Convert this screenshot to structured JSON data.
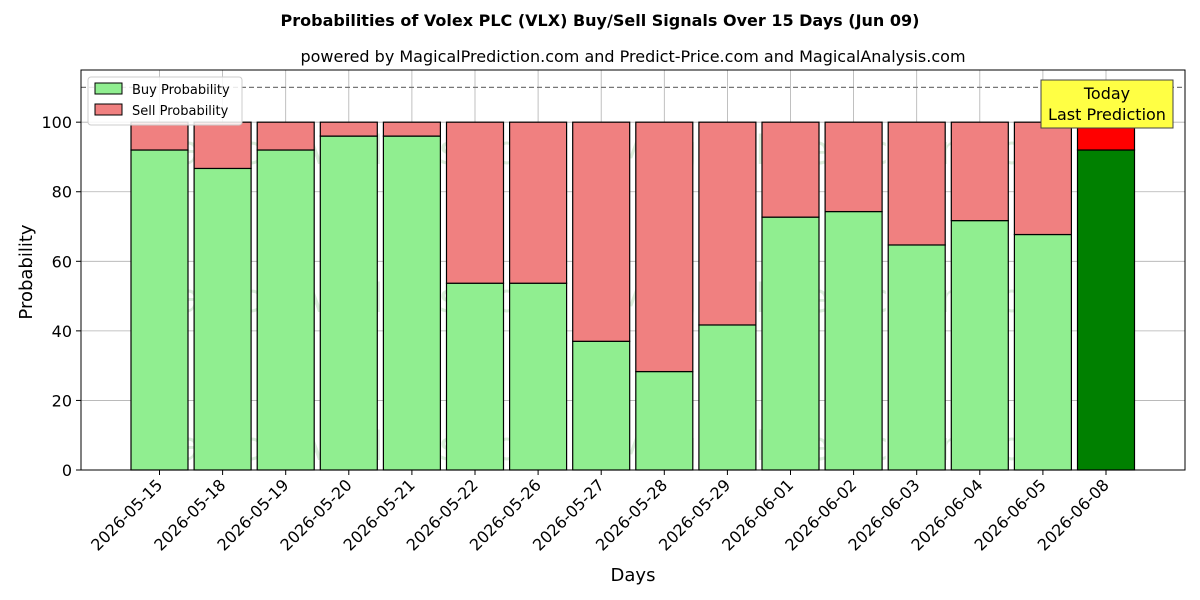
{
  "chart_data": {
    "type": "bar",
    "stacked": true,
    "title": "Probabilities of Volex PLC (VLX) Buy/Sell Signals Over 15 Days (Jun 09)",
    "subtitle": "powered by MagicalPrediction.com and Predict-Price.com and MagicalAnalysis.com",
    "xlabel": "Days",
    "ylabel": "Probability",
    "ylim": [
      0,
      115
    ],
    "yticks": [
      0,
      20,
      40,
      60,
      80,
      100
    ],
    "reference_line": 110,
    "grid": true,
    "legend_position": "top-left",
    "categories": [
      "2026-05-15",
      "2026-05-18",
      "2026-05-19",
      "2026-05-20",
      "2026-05-21",
      "2026-05-22",
      "2026-05-26",
      "2026-05-27",
      "2026-05-28",
      "2026-05-29",
      "2026-06-01",
      "2026-06-02",
      "2026-06-03",
      "2026-06-04",
      "2026-06-05",
      "2026-06-08"
    ],
    "series": [
      {
        "name": "Buy Probability",
        "color": "#90ee90",
        "highlight_color": "#008000",
        "values": [
          92,
          86.7,
          92,
          96,
          96,
          53.7,
          53.7,
          37,
          28.3,
          41.7,
          72.7,
          74.3,
          64.7,
          71.7,
          67.7,
          92
        ]
      },
      {
        "name": "Sell Probability",
        "color": "#f08080",
        "highlight_color": "#ff0000",
        "values": [
          8,
          13.3,
          8,
          4,
          4,
          46.3,
          46.3,
          63,
          71.7,
          58.3,
          27.3,
          25.7,
          35.3,
          28.3,
          32.3,
          8
        ]
      }
    ],
    "annotation": {
      "lines": [
        "Today",
        "Last Prediction"
      ],
      "box_color": "#ffff44",
      "target_category": "2026-06-08"
    },
    "watermarks": [
      "MagicalAnalysis.com",
      "MagicalPrediction.com"
    ]
  }
}
